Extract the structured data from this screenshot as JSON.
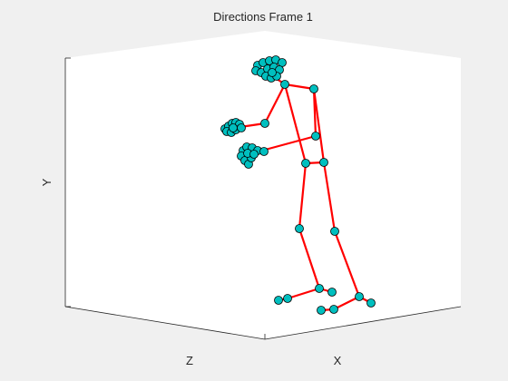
{
  "figure": {
    "title": "Directions Frame 1",
    "ylabel": "Y",
    "zlabel": "Z",
    "xlabel": "X"
  },
  "colors": {
    "figure_bg": "#f0f0f0",
    "axes_bg": "#ffffff",
    "axis_line": "#262626",
    "bone": "#ff0000",
    "joint_fill": "#00bfbf",
    "joint_edge": "#000000"
  },
  "chart_data": {
    "type": "scatter",
    "title": "Directions Frame 1",
    "xlabel": "X",
    "ylabel": "Y",
    "zlabel": "Z",
    "grid": false,
    "legend": "none"
  }
}
